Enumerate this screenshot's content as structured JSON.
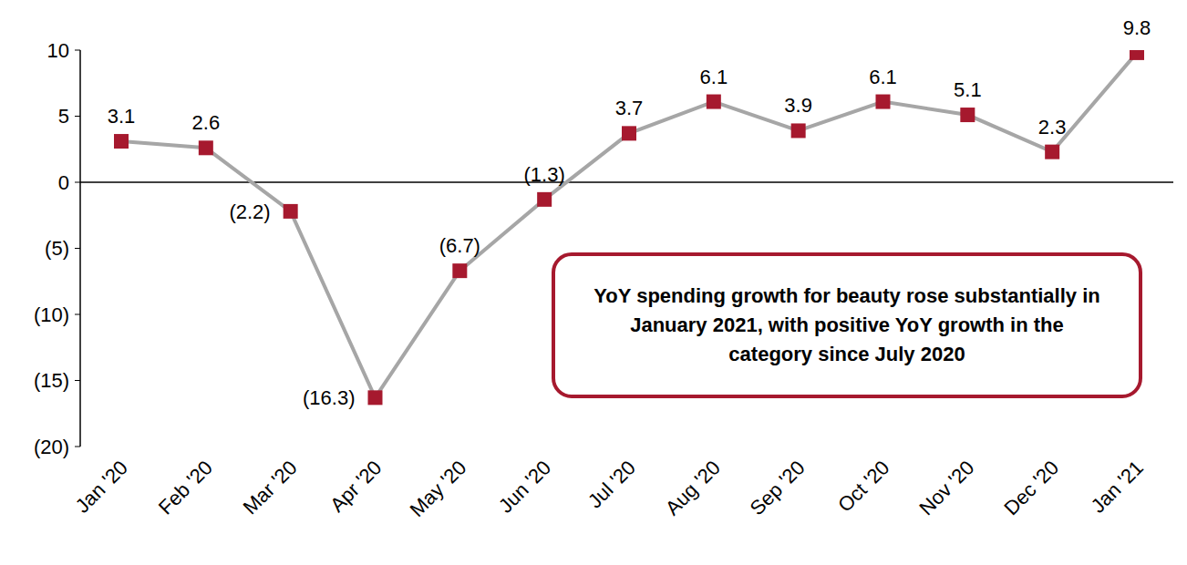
{
  "chart_data": {
    "type": "line",
    "categories": [
      "Jan '20",
      "Feb '20",
      "Mar '20",
      "Apr '20",
      "May '20",
      "Jun '20",
      "Jul '20",
      "Aug '20",
      "Sep '20",
      "Oct '20",
      "Nov '20",
      "Dec '20",
      "Jan '21"
    ],
    "values": [
      3.1,
      2.6,
      -2.2,
      -16.3,
      -6.7,
      -1.3,
      3.7,
      6.1,
      3.9,
      6.1,
      5.1,
      2.3,
      9.8
    ],
    "value_labels": [
      "3.1",
      "2.6",
      "(2.2)",
      "(16.3)",
      "(6.7)",
      "(1.3)",
      "3.7",
      "6.1",
      "3.9",
      "6.1",
      "5.1",
      "2.3",
      "9.8"
    ],
    "color": "#A6A6A6",
    "marker": "square",
    "ylim": [
      -20,
      10
    ],
    "yticks": [
      {
        "value": -20,
        "label": "(20)"
      },
      {
        "value": -15,
        "label": "(15)"
      },
      {
        "value": -10,
        "label": "(10)"
      },
      {
        "value": -5,
        "label": "(5)"
      },
      0,
      5,
      10
    ],
    "data_labels": true,
    "grid": false,
    "annotation": "YoY spending growth for beauty rose substantially in January 2021, with positive YoY growth in the category since July 2020"
  }
}
